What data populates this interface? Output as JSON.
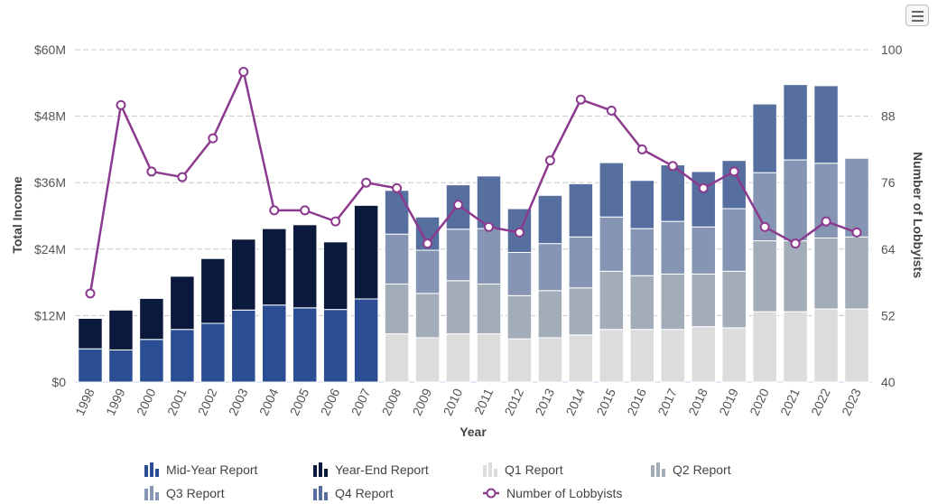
{
  "toolbar": {
    "menu_icon": "hamburger-menu-icon"
  },
  "chart_data": {
    "type": "bar",
    "stacked": true,
    "x": [
      "1998",
      "1999",
      "2000",
      "2001",
      "2002",
      "2003",
      "2004",
      "2005",
      "2006",
      "2007",
      "2008",
      "2009",
      "2010",
      "2011",
      "2012",
      "2013",
      "2014",
      "2015",
      "2016",
      "2017",
      "2018",
      "2019",
      "2020",
      "2021",
      "2022",
      "2023"
    ],
    "xlabel": "Year",
    "ylabel": "Total Income",
    "y2label": "Number of Lobbyists",
    "ylim": [
      0,
      60
    ],
    "y_ticks": [
      "$0",
      "$12M",
      "$24M",
      "$36M",
      "$48M",
      "$60M"
    ],
    "y2lim": [
      40,
      100
    ],
    "y2_ticks": [
      "40",
      "52",
      "64",
      "76",
      "88",
      "100"
    ],
    "grid": true,
    "legend_position": "bottom",
    "series": [
      {
        "name": "Mid-Year Report",
        "color": "#2a4d94",
        "values": [
          6,
          5.8,
          7.7,
          9.5,
          10.6,
          13,
          13.9,
          13.4,
          13.1,
          15,
          null,
          null,
          null,
          null,
          null,
          null,
          null,
          null,
          null,
          null,
          null,
          null,
          null,
          null,
          null,
          null
        ]
      },
      {
        "name": "Year-End Report",
        "color": "#0b1a3c",
        "values": [
          5.5,
          7.2,
          7.4,
          9.6,
          11.7,
          12.8,
          13.8,
          15,
          12.2,
          16.9,
          null,
          null,
          null,
          null,
          null,
          null,
          null,
          null,
          null,
          null,
          null,
          null,
          null,
          null,
          null,
          null
        ]
      },
      {
        "name": "Q1 Report",
        "color": "#dcdcdc",
        "values": [
          null,
          null,
          null,
          null,
          null,
          null,
          null,
          null,
          null,
          null,
          8.7,
          8,
          8.7,
          8.7,
          7.8,
          8,
          8.5,
          9.5,
          9.5,
          9.5,
          10,
          9.8,
          12.7,
          12.7,
          13.2,
          13.2
        ]
      },
      {
        "name": "Q2 Report",
        "color": "#a3acb9",
        "values": [
          null,
          null,
          null,
          null,
          null,
          null,
          null,
          null,
          null,
          null,
          9,
          8,
          9.6,
          9,
          7.8,
          8.5,
          8.5,
          10.5,
          9.7,
          10,
          9.5,
          10.2,
          12.8,
          12.8,
          12.8,
          13
        ]
      },
      {
        "name": "Q3 Report",
        "color": "#8595b3",
        "values": [
          null,
          null,
          null,
          null,
          null,
          null,
          null,
          null,
          null,
          null,
          9,
          7.8,
          9.3,
          10,
          7.8,
          8.5,
          9.2,
          9.8,
          8.5,
          9.5,
          8.5,
          11.3,
          12.3,
          14.6,
          13.5,
          14.2
        ]
      },
      {
        "name": "Q4 Report",
        "color": "#566f9f",
        "values": [
          null,
          null,
          null,
          null,
          null,
          null,
          null,
          null,
          null,
          null,
          7.9,
          6,
          8,
          9.5,
          7.9,
          8.7,
          9.6,
          9.8,
          8.7,
          10.2,
          10,
          8.7,
          12.4,
          13.6,
          14,
          null
        ]
      },
      {
        "name": "Number of Lobbyists",
        "type": "line",
        "axis": "right",
        "color": "#8b3a8f",
        "values": [
          56,
          90,
          78,
          77,
          84,
          96,
          71,
          71,
          69,
          76,
          75,
          65,
          72,
          68,
          67,
          80,
          91,
          89,
          82,
          79,
          75,
          78,
          68,
          65,
          69,
          67
        ]
      }
    ]
  }
}
